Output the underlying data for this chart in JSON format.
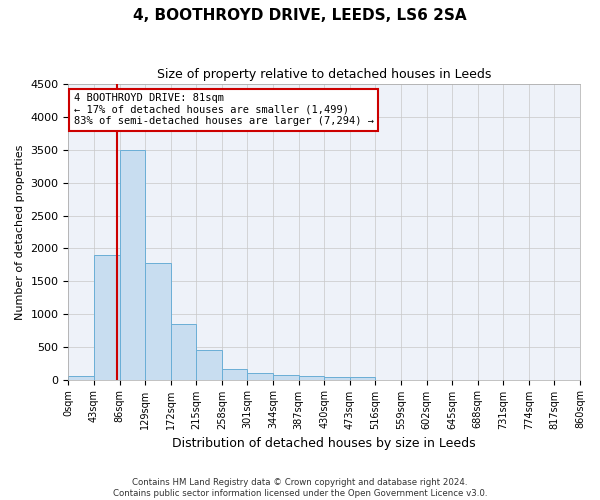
{
  "title": "4, BOOTHROYD DRIVE, LEEDS, LS6 2SA",
  "subtitle": "Size of property relative to detached houses in Leeds",
  "xlabel": "Distribution of detached houses by size in Leeds",
  "ylabel": "Number of detached properties",
  "bar_color": "#c8ddf0",
  "bar_edge_color": "#6aaed6",
  "background_color": "#eef2f9",
  "grid_color": "#c8c8c8",
  "annotation_line_color": "#cc0000",
  "annotation_box_color": "#cc0000",
  "footer_line1": "Contains HM Land Registry data © Crown copyright and database right 2024.",
  "footer_line2": "Contains public sector information licensed under the Open Government Licence v3.0.",
  "annotation_line1": "4 BOOTHROYD DRIVE: 81sqm",
  "annotation_line2": "← 17% of detached houses are smaller (1,499)",
  "annotation_line3": "83% of semi-detached houses are larger (7,294) →",
  "property_sqm": 81,
  "ylim": [
    0,
    4500
  ],
  "yticks": [
    0,
    500,
    1000,
    1500,
    2000,
    2500,
    3000,
    3500,
    4000,
    4500
  ],
  "bin_edges": [
    0,
    43,
    86,
    129,
    172,
    215,
    258,
    301,
    344,
    387,
    430,
    473,
    516,
    559,
    602,
    645,
    688,
    731,
    774,
    817,
    860
  ],
  "bar_heights": [
    50,
    1900,
    3500,
    1775,
    840,
    455,
    165,
    100,
    70,
    55,
    40,
    35,
    0,
    0,
    0,
    0,
    0,
    0,
    0,
    0
  ],
  "xlim": [
    0,
    860
  ]
}
